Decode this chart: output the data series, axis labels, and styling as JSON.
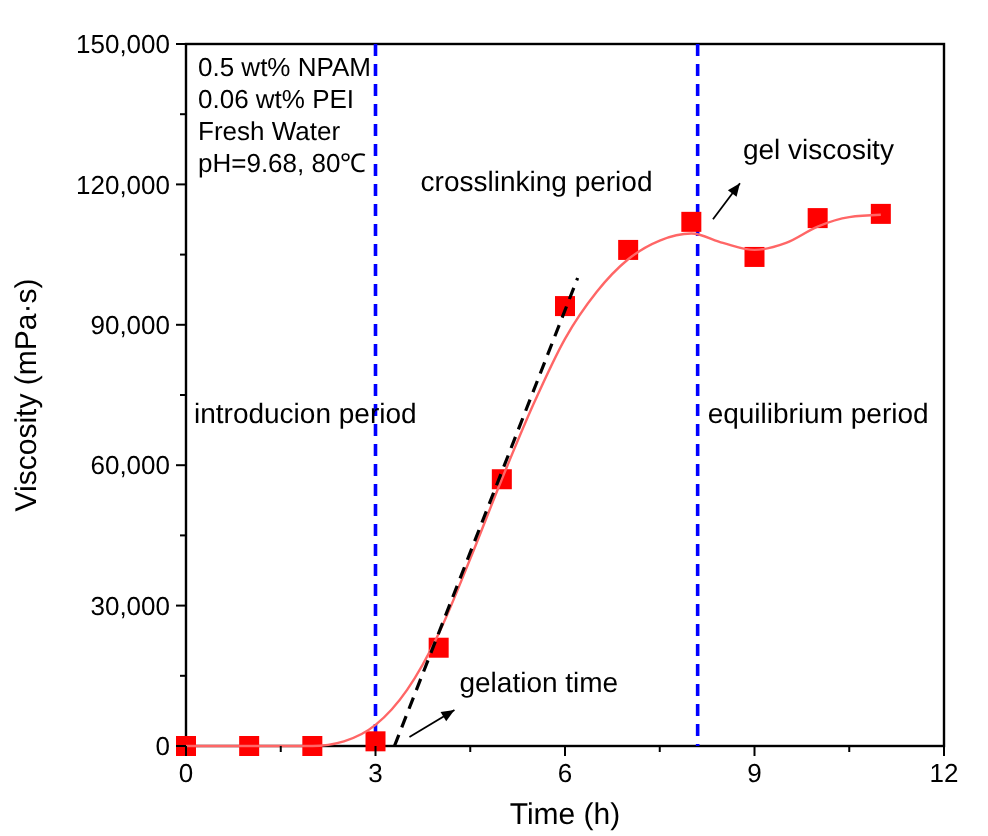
{
  "chart_data": {
    "type": "scatter",
    "xlabel": "Time (h)",
    "ylabel": "Viscosity (mPa·s)",
    "xlim": [
      0,
      12
    ],
    "xticks": [
      0,
      {
        "value": 1.5,
        "label": null
      },
      3,
      {
        "value": 4.5,
        "label": null
      },
      6,
      {
        "value": 7.5,
        "label": null
      },
      9,
      {
        "value": 10.5,
        "label": null
      },
      12
    ],
    "ylim": [
      0,
      150000
    ],
    "yticks": [
      {
        "value": 0,
        "label": "0"
      },
      {
        "value": 15000,
        "label": null
      },
      {
        "value": 30000,
        "label": "30,000"
      },
      {
        "value": 45000,
        "label": null
      },
      {
        "value": 60000,
        "label": "60,000"
      },
      {
        "value": 75000,
        "label": null
      },
      {
        "value": 90000,
        "label": "90,000"
      },
      {
        "value": 105000,
        "label": null
      },
      {
        "value": 120000,
        "label": "120,000"
      },
      {
        "value": 135000,
        "label": null
      },
      {
        "value": 150000,
        "label": "150,000"
      }
    ],
    "grid": false,
    "series": [
      {
        "color": "#ff0000",
        "marker": "square",
        "x": [
          0,
          1,
          2,
          3,
          4,
          5,
          6,
          7,
          8,
          9,
          10,
          11
        ],
        "values": [
          0,
          0,
          0,
          1000,
          21000,
          57000,
          94000,
          106000,
          112000,
          104500,
          112800,
          113700
        ]
      },
      {
        "type": "line",
        "color": "#ff6666",
        "marker": "none",
        "line_style": "solid",
        "x": [
          0,
          1,
          2,
          2.5,
          3,
          3.5,
          4,
          4.5,
          5,
          5.5,
          6,
          6.5,
          7,
          7.5,
          8,
          8.5,
          9,
          9.5,
          10,
          10.5,
          11
        ],
        "values": [
          0,
          0,
          0,
          1000,
          4500,
          12000,
          24000,
          40000,
          57000,
          73000,
          87000,
          97000,
          104000,
          108000,
          109500,
          107500,
          106000,
          107500,
          111000,
          113000,
          113500
        ]
      },
      {
        "type": "line",
        "color": "#000000",
        "marker": "none",
        "line_style": "dashed",
        "x": [
          3.3,
          6.2
        ],
        "values": [
          0,
          100000
        ]
      }
    ],
    "ref_lines": [
      {
        "axis": "x",
        "value": 3,
        "color": "#0000ff",
        "line_style": "dashed"
      },
      {
        "axis": "x",
        "value": 8.1,
        "color": "#0000ff",
        "line_style": "dashed"
      }
    ],
    "annotations": [
      "0.5 wt% NPAM",
      "0.06 wt% PEI",
      "Fresh Water",
      "pH=9.68, 80℃",
      "introducion period",
      "crosslinking period",
      "equilibrium period",
      {
        "text": "gel viscosity",
        "x": 8.2,
        "y": 110000
      },
      {
        "text": "gelation time",
        "x": 3.3,
        "y": 0
      }
    ]
  }
}
